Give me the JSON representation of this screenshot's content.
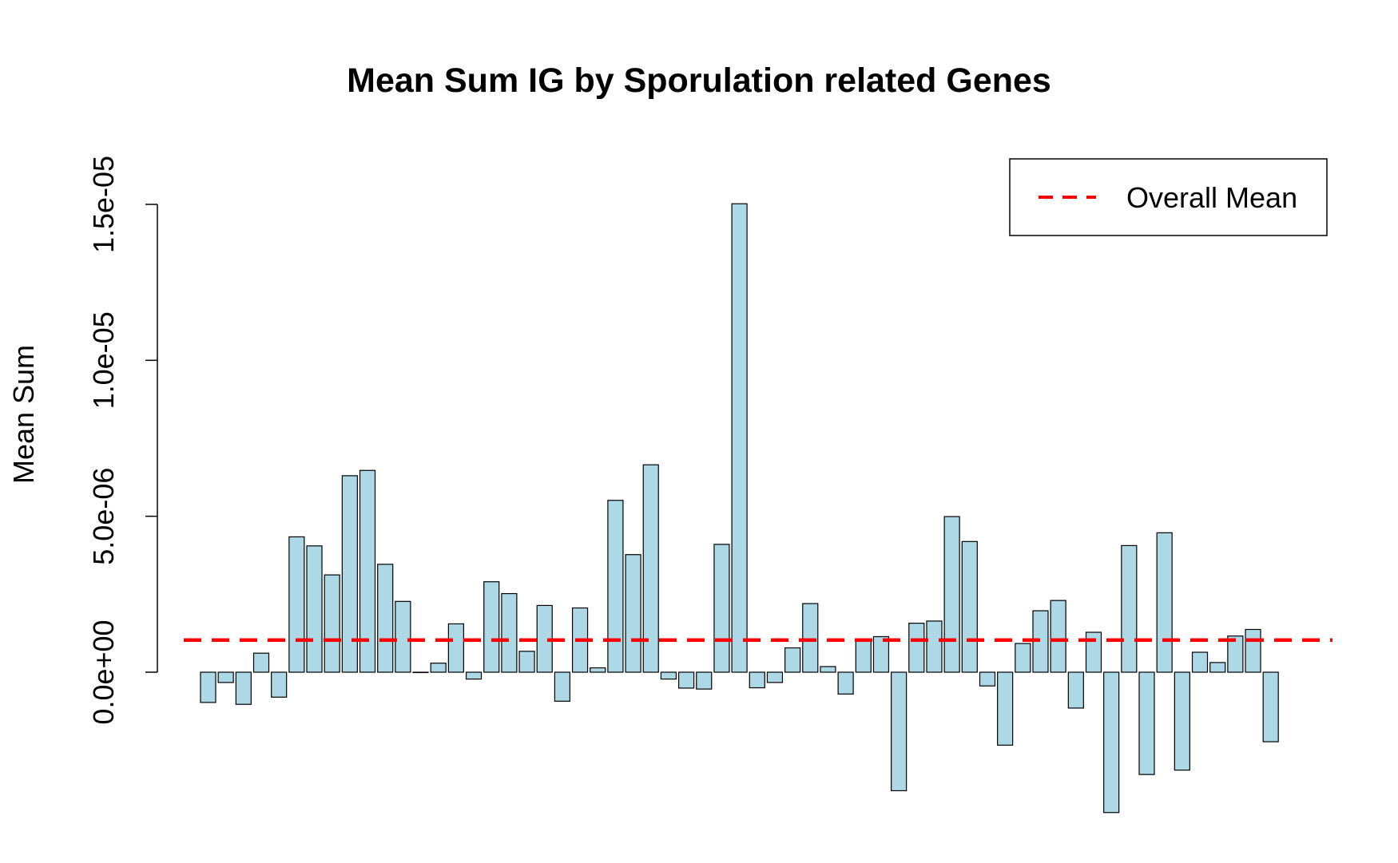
{
  "chart_data": {
    "type": "bar",
    "title": "Mean Sum IG by Sporulation related Genes",
    "xlabel": "",
    "ylabel": "Mean Sum",
    "ylim": [
      -4.5e-06,
      1.5e-05
    ],
    "yticks": [
      0,
      5e-06,
      1e-05,
      1.5e-05
    ],
    "ytick_labels": [
      "0.0e+00",
      "5.0e-06",
      "1.0e-05",
      "1.5e-05"
    ],
    "bar_color": "#add8e6",
    "bar_edge_color": "#000000",
    "reference_line": {
      "name": "Overall Mean",
      "value": 1.03e-06,
      "color": "#ff0000",
      "style": "dashed"
    },
    "legend": {
      "position": "top-right",
      "entries": [
        "Overall Mean"
      ]
    },
    "grid": false,
    "values": [
      -9.7e-07,
      -3.3e-07,
      -1.03e-06,
      6.1e-07,
      -8e-07,
      4.34e-06,
      4.05e-06,
      3.12e-06,
      6.3e-06,
      6.47e-06,
      3.46e-06,
      2.27e-06,
      0.0,
      2.9e-07,
      1.55e-06,
      -2.2e-07,
      2.9e-06,
      2.52e-06,
      6.7e-07,
      2.14e-06,
      -9.3e-07,
      2.06e-06,
      1.4e-07,
      5.51e-06,
      3.77e-06,
      6.65e-06,
      -2.2e-07,
      -5.1e-07,
      -5.4e-07,
      4.1e-06,
      1.502e-05,
      -5e-07,
      -3.3e-07,
      7.8e-07,
      2.2e-06,
      1.8e-07,
      -7e-07,
      1.06e-06,
      1.14e-06,
      -3.8e-06,
      1.57e-06,
      1.64e-06,
      4.99e-06,
      4.19e-06,
      -4.4e-07,
      -2.34e-06,
      9.2e-07,
      1.97e-06,
      2.3e-06,
      -1.15e-06,
      1.28e-06,
      -4.5e-06,
      4.06e-06,
      -3.28e-06,
      4.47e-06,
      -3.14e-06,
      6.4e-07,
      3.1e-07,
      1.16e-06,
      1.37e-06,
      -2.23e-06
    ]
  }
}
